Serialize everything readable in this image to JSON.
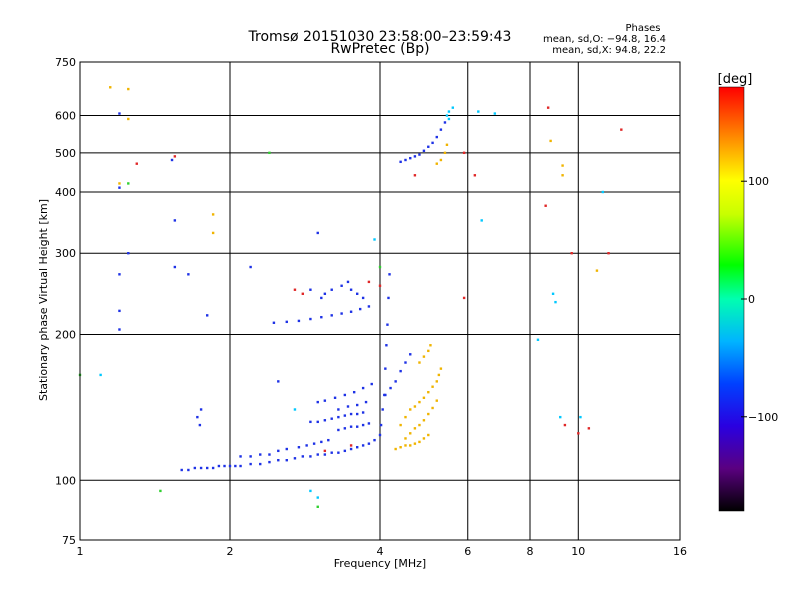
{
  "chart_data": {
    "type": "scatter",
    "title_line1": "Tromsø 20151030 23:58:00–23:59:43",
    "title_line2": "RwPretec (Bp)",
    "stats": {
      "heading": "Phases",
      "o_line": "mean, sd,O: −94.8, 16.4",
      "x_line": "mean, sd,X:  94.8, 22.2"
    },
    "xlabel": "Frequency [MHz]",
    "ylabel": "Stationary phase Virtual Height [km]",
    "x_scale": "log",
    "y_scale": "stretched-log",
    "xlim": [
      1,
      16
    ],
    "ylim": [
      75,
      750
    ],
    "grid": true,
    "x_ticks": [
      {
        "value": 1,
        "label": "1"
      },
      {
        "value": 2,
        "label": "2"
      },
      {
        "value": 4,
        "label": "4"
      },
      {
        "value": 6,
        "label": "6"
      },
      {
        "value": 8,
        "label": "8"
      },
      {
        "value": 10,
        "label": "10"
      },
      {
        "value": 16,
        "label": "16"
      }
    ],
    "y_ticks": [
      {
        "value": 75,
        "label": "75"
      },
      {
        "value": 100,
        "label": "100"
      },
      {
        "value": 200,
        "label": "200"
      },
      {
        "value": 300,
        "label": "300"
      },
      {
        "value": 400,
        "label": "400"
      },
      {
        "value": 500,
        "label": "500"
      },
      {
        "value": 600,
        "label": "600"
      },
      {
        "value": 750,
        "label": "750"
      }
    ],
    "colorbar": {
      "label": "[deg]",
      "min": -180,
      "max": 180,
      "ticks": [
        {
          "value": 100,
          "label": "100"
        },
        {
          "value": 0,
          "label": "0"
        },
        {
          "value": -100,
          "label": "−100"
        }
      ]
    },
    "series": [
      {
        "mode": "O",
        "color": "#1e32e6",
        "points": [
          [
            1.6,
            105
          ],
          [
            1.65,
            105
          ],
          [
            1.7,
            106
          ],
          [
            1.75,
            106
          ],
          [
            1.8,
            106
          ],
          [
            1.85,
            106
          ],
          [
            1.9,
            107
          ],
          [
            1.95,
            107
          ],
          [
            2.0,
            107
          ],
          [
            2.05,
            107
          ],
          [
            2.1,
            107
          ],
          [
            2.2,
            108
          ],
          [
            2.3,
            108
          ],
          [
            2.4,
            109
          ],
          [
            2.5,
            110
          ],
          [
            2.6,
            110
          ],
          [
            2.7,
            111
          ],
          [
            2.8,
            112
          ],
          [
            2.9,
            112
          ],
          [
            3.0,
            113
          ],
          [
            3.1,
            113
          ],
          [
            3.2,
            114
          ],
          [
            3.3,
            114
          ],
          [
            3.4,
            115
          ],
          [
            3.5,
            116
          ],
          [
            3.6,
            117
          ],
          [
            3.7,
            118
          ],
          [
            3.8,
            119
          ],
          [
            3.9,
            121
          ],
          [
            4.0,
            124
          ],
          [
            4.02,
            130
          ],
          [
            4.05,
            140
          ],
          [
            4.08,
            150
          ],
          [
            4.1,
            170
          ],
          [
            4.12,
            190
          ],
          [
            4.14,
            210
          ],
          [
            4.16,
            240
          ],
          [
            4.18,
            270
          ],
          [
            2.1,
            112
          ],
          [
            2.2,
            112
          ],
          [
            2.3,
            113
          ],
          [
            2.4,
            113
          ],
          [
            2.5,
            115
          ],
          [
            2.6,
            116
          ],
          [
            2.75,
            117
          ],
          [
            2.85,
            118
          ],
          [
            2.95,
            119
          ],
          [
            3.05,
            120
          ],
          [
            3.15,
            121
          ],
          [
            2.9,
            132
          ],
          [
            3.0,
            132
          ],
          [
            3.1,
            133
          ],
          [
            3.2,
            134
          ],
          [
            3.3,
            135
          ],
          [
            3.4,
            136
          ],
          [
            3.5,
            137
          ],
          [
            3.6,
            137
          ],
          [
            3.7,
            138
          ],
          [
            3.3,
            127
          ],
          [
            3.4,
            128
          ],
          [
            3.5,
            129
          ],
          [
            3.6,
            129
          ],
          [
            3.7,
            130
          ],
          [
            3.8,
            131
          ],
          [
            3.3,
            140
          ],
          [
            3.45,
            142
          ],
          [
            3.6,
            143
          ],
          [
            3.75,
            145
          ],
          [
            3.0,
            145
          ],
          [
            3.1,
            146
          ],
          [
            3.25,
            148
          ],
          [
            3.4,
            150
          ],
          [
            3.55,
            152
          ],
          [
            3.7,
            155
          ],
          [
            3.85,
            158
          ],
          [
            4.1,
            150
          ],
          [
            4.2,
            155
          ],
          [
            4.3,
            160
          ],
          [
            4.4,
            168
          ],
          [
            4.5,
            175
          ],
          [
            4.6,
            182
          ],
          [
            2.45,
            212
          ],
          [
            2.6,
            213
          ],
          [
            2.75,
            214
          ],
          [
            2.9,
            216
          ],
          [
            3.05,
            218
          ],
          [
            3.2,
            220
          ],
          [
            3.35,
            222
          ],
          [
            3.5,
            224
          ],
          [
            3.65,
            227
          ],
          [
            3.8,
            230
          ],
          [
            3.35,
            255
          ],
          [
            3.45,
            260
          ],
          [
            3.5,
            250
          ],
          [
            3.6,
            245
          ],
          [
            3.7,
            240
          ],
          [
            3.05,
            240
          ],
          [
            3.1,
            245
          ],
          [
            3.2,
            250
          ],
          [
            4.4,
            475
          ],
          [
            4.5,
            480
          ],
          [
            4.6,
            485
          ],
          [
            4.7,
            490
          ],
          [
            4.8,
            495
          ],
          [
            4.9,
            505
          ],
          [
            5.0,
            515
          ],
          [
            5.1,
            525
          ],
          [
            5.2,
            540
          ],
          [
            5.3,
            560
          ],
          [
            5.4,
            580
          ],
          [
            1.72,
            135
          ],
          [
            1.74,
            130
          ],
          [
            1.75,
            140
          ],
          [
            1.2,
            605
          ],
          [
            1.2,
            410
          ],
          [
            1.2,
            270
          ],
          [
            1.2,
            225
          ],
          [
            1.2,
            205
          ],
          [
            1.25,
            300
          ],
          [
            1.53,
            480
          ],
          [
            1.55,
            350
          ],
          [
            1.55,
            280
          ],
          [
            1.65,
            270
          ],
          [
            1.8,
            220
          ],
          [
            2.2,
            280
          ],
          [
            2.5,
            160
          ],
          [
            2.9,
            250
          ],
          [
            3.0,
            330
          ]
        ]
      },
      {
        "mode": "X",
        "color": "#f0b400",
        "points": [
          [
            4.4,
            130
          ],
          [
            4.5,
            135
          ],
          [
            4.6,
            140
          ],
          [
            4.7,
            142
          ],
          [
            4.8,
            145
          ],
          [
            4.9,
            148
          ],
          [
            5.0,
            152
          ],
          [
            5.1,
            156
          ],
          [
            5.2,
            160
          ],
          [
            5.25,
            165
          ],
          [
            5.3,
            170
          ],
          [
            4.5,
            122
          ],
          [
            4.6,
            125
          ],
          [
            4.7,
            128
          ],
          [
            4.8,
            130
          ],
          [
            4.9,
            133
          ],
          [
            5.0,
            137
          ],
          [
            5.1,
            141
          ],
          [
            5.2,
            146
          ],
          [
            4.3,
            116
          ],
          [
            4.4,
            117
          ],
          [
            4.5,
            118
          ],
          [
            4.6,
            118
          ],
          [
            4.7,
            119
          ],
          [
            4.8,
            120
          ],
          [
            4.9,
            122
          ],
          [
            5.0,
            124
          ],
          [
            4.8,
            175
          ],
          [
            4.9,
            180
          ],
          [
            5.0,
            185
          ],
          [
            5.05,
            190
          ],
          [
            5.2,
            470
          ],
          [
            5.3,
            480
          ],
          [
            5.4,
            500
          ],
          [
            5.45,
            520
          ],
          [
            1.15,
            675
          ],
          [
            1.25,
            670
          ],
          [
            1.25,
            590
          ],
          [
            1.2,
            420
          ],
          [
            1.85,
            360
          ],
          [
            1.85,
            330
          ],
          [
            9.3,
            465
          ],
          [
            9.3,
            440
          ],
          [
            8.8,
            530
          ],
          [
            10.9,
            275
          ]
        ]
      },
      {
        "mode": "noise",
        "color": "#e02828",
        "points": [
          [
            1.3,
            470
          ],
          [
            1.55,
            490
          ],
          [
            2.7,
            250
          ],
          [
            2.8,
            245
          ],
          [
            3.8,
            260
          ],
          [
            4.0,
            255
          ],
          [
            4.7,
            440
          ],
          [
            5.9,
            500
          ],
          [
            5.9,
            240
          ],
          [
            6.2,
            440
          ],
          [
            8.7,
            620
          ],
          [
            8.6,
            375
          ],
          [
            9.7,
            300
          ],
          [
            12.2,
            560
          ],
          [
            11.5,
            300
          ],
          [
            10.0,
            125
          ],
          [
            10.5,
            128
          ],
          [
            9.4,
            130
          ],
          [
            3.1,
            115
          ],
          [
            3.5,
            118
          ]
        ]
      },
      {
        "mode": "noise",
        "color": "#00c8ff",
        "points": [
          [
            5.6,
            620
          ],
          [
            5.5,
            610
          ],
          [
            5.45,
            600
          ],
          [
            5.5,
            590
          ],
          [
            6.3,
            610
          ],
          [
            6.8,
            605
          ],
          [
            6.4,
            350
          ],
          [
            11.2,
            400
          ],
          [
            10.1,
            135
          ],
          [
            9.2,
            135
          ],
          [
            9.0,
            235
          ],
          [
            8.9,
            245
          ],
          [
            3.9,
            320
          ],
          [
            2.7,
            140
          ],
          [
            2.9,
            95
          ],
          [
            3.0,
            92
          ],
          [
            1.1,
            165
          ],
          [
            8.3,
            195
          ]
        ]
      },
      {
        "mode": "noise",
        "color": "#30d030",
        "points": [
          [
            1.25,
            420
          ],
          [
            1.45,
            95
          ],
          [
            2.4,
            500
          ],
          [
            1.0,
            165
          ],
          [
            4.0,
            280
          ],
          [
            3.0,
            88
          ]
        ]
      }
    ]
  }
}
